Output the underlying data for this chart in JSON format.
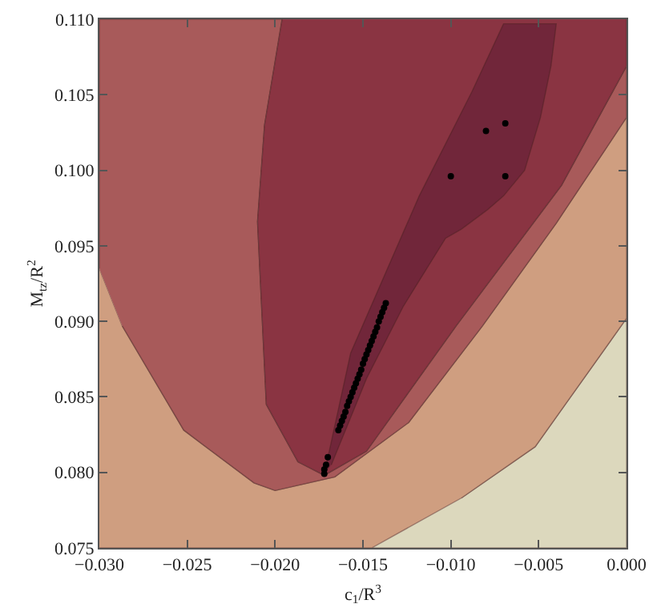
{
  "chart_data": {
    "type": "scatter",
    "xlabel": "c$_{1}$/R$^{3}$",
    "ylabel": "M$_{tz}$/R$^{2}$",
    "xlim": [
      -0.03,
      0.0
    ],
    "ylim": [
      0.075,
      0.11
    ],
    "xticks": [
      {
        "value": -0.03,
        "label": "−0.030"
      },
      {
        "value": -0.025,
        "label": "−0.025"
      },
      {
        "value": -0.02,
        "label": "−0.020"
      },
      {
        "value": -0.015,
        "label": "−0.015"
      },
      {
        "value": -0.01,
        "label": "−0.010"
      },
      {
        "value": -0.005,
        "label": "−0.005"
      },
      {
        "value": 0.0,
        "label": "0.000"
      }
    ],
    "yticks": [
      {
        "value": 0.075,
        "label": "0.075"
      },
      {
        "value": 0.08,
        "label": "0.080"
      },
      {
        "value": 0.085,
        "label": "0.085"
      },
      {
        "value": 0.09,
        "label": "0.090"
      },
      {
        "value": 0.095,
        "label": "0.095"
      },
      {
        "value": 0.1,
        "label": "0.100"
      },
      {
        "value": 0.105,
        "label": "0.105"
      },
      {
        "value": 0.11,
        "label": "0.110"
      }
    ],
    "marker": "circle",
    "series": [
      {
        "type": "area",
        "marker": "none",
        "color": "#dcd8bd",
        "x": [
          -0.0145,
          0.0,
          0.0,
          -0.0052,
          -0.0094
        ],
        "values": [
          0.075,
          0.075,
          0.0902,
          0.0817,
          0.0783
        ]
      },
      {
        "type": "area",
        "marker": "none",
        "color": "#cf9e80",
        "x": [
          -0.03,
          -0.0145,
          -0.0094,
          -0.0052,
          0.0,
          0.0,
          -0.004,
          -0.0082,
          -0.0124,
          -0.0166,
          -0.02,
          -0.0212,
          -0.0252,
          -0.0287,
          -0.03
        ],
        "values": [
          0.075,
          0.075,
          0.0783,
          0.0817,
          0.0902,
          0.1035,
          0.0965,
          0.0897,
          0.0833,
          0.0797,
          0.0788,
          0.0793,
          0.0828,
          0.0897,
          0.0935
        ]
      },
      {
        "type": "area",
        "marker": "none",
        "color": "#a85a5a",
        "x": [
          -0.03,
          -0.03,
          -0.0196,
          -0.0206,
          -0.021,
          -0.0205,
          -0.0187,
          -0.0172,
          -0.0148,
          -0.0097,
          -0.0037,
          0.0,
          0.0,
          -0.004,
          -0.0082,
          -0.0124,
          -0.0166,
          -0.02,
          -0.0212,
          -0.0252,
          -0.0287
        ],
        "values": [
          0.0935,
          0.11,
          0.11,
          0.103,
          0.0966,
          0.0845,
          0.0807,
          0.0798,
          0.0814,
          0.0897,
          0.099,
          0.1069,
          0.1035,
          0.0965,
          0.0897,
          0.0833,
          0.0797,
          0.0788,
          0.0793,
          0.0828,
          0.0897
        ]
      },
      {
        "type": "area",
        "marker": "none",
        "color": "#8a3442",
        "x": [
          -0.0196,
          -0.0206,
          -0.021,
          -0.0205,
          -0.0187,
          -0.0172,
          -0.0148,
          -0.0097,
          -0.0037,
          0.0,
          0.0
        ],
        "values": [
          0.11,
          0.103,
          0.0966,
          0.0845,
          0.0807,
          0.0798,
          0.0814,
          0.0897,
          0.099,
          0.1069,
          0.11
        ]
      },
      {
        "type": "area",
        "marker": "none",
        "color": "#71263a",
        "x": [
          -0.0172,
          -0.0157,
          -0.0118,
          -0.0088,
          -0.007,
          -0.004,
          -0.0043,
          -0.0049,
          -0.0058,
          -0.007,
          -0.0079,
          -0.0094,
          -0.0103,
          -0.0127,
          -0.0148,
          -0.0168
        ],
        "values": [
          0.0799,
          0.0879,
          0.0983,
          0.1052,
          0.1097,
          0.1097,
          0.1069,
          0.1035,
          0.1,
          0.0983,
          0.0974,
          0.0961,
          0.0955,
          0.091,
          0.0862,
          0.0805
        ]
      },
      {
        "color": "#000000",
        "x": [
          -0.008,
          -0.0069,
          -0.01,
          -0.0069,
          -0.0172,
          -0.0172,
          -0.0171,
          -0.017,
          -0.0164,
          -0.0163,
          -0.0162,
          -0.0161,
          -0.016,
          -0.0159,
          -0.0158,
          -0.0157,
          -0.0156,
          -0.0155,
          -0.0154,
          -0.0153,
          -0.0152,
          -0.0151,
          -0.015,
          -0.0149,
          -0.0148,
          -0.0147,
          -0.0146,
          -0.0145,
          -0.0144,
          -0.0143,
          -0.0142,
          -0.0141,
          -0.014,
          -0.0139,
          -0.0138,
          -0.0137
        ],
        "values": [
          0.1026,
          0.1031,
          0.0996,
          0.0996,
          0.0799,
          0.0802,
          0.0805,
          0.081,
          0.0828,
          0.0831,
          0.0834,
          0.0837,
          0.084,
          0.0844,
          0.0847,
          0.085,
          0.0853,
          0.0856,
          0.0859,
          0.0862,
          0.0865,
          0.0868,
          0.0872,
          0.0875,
          0.0878,
          0.0881,
          0.0884,
          0.0887,
          0.089,
          0.0893,
          0.0896,
          0.09,
          0.0903,
          0.0906,
          0.0909,
          0.0912
        ]
      }
    ]
  }
}
